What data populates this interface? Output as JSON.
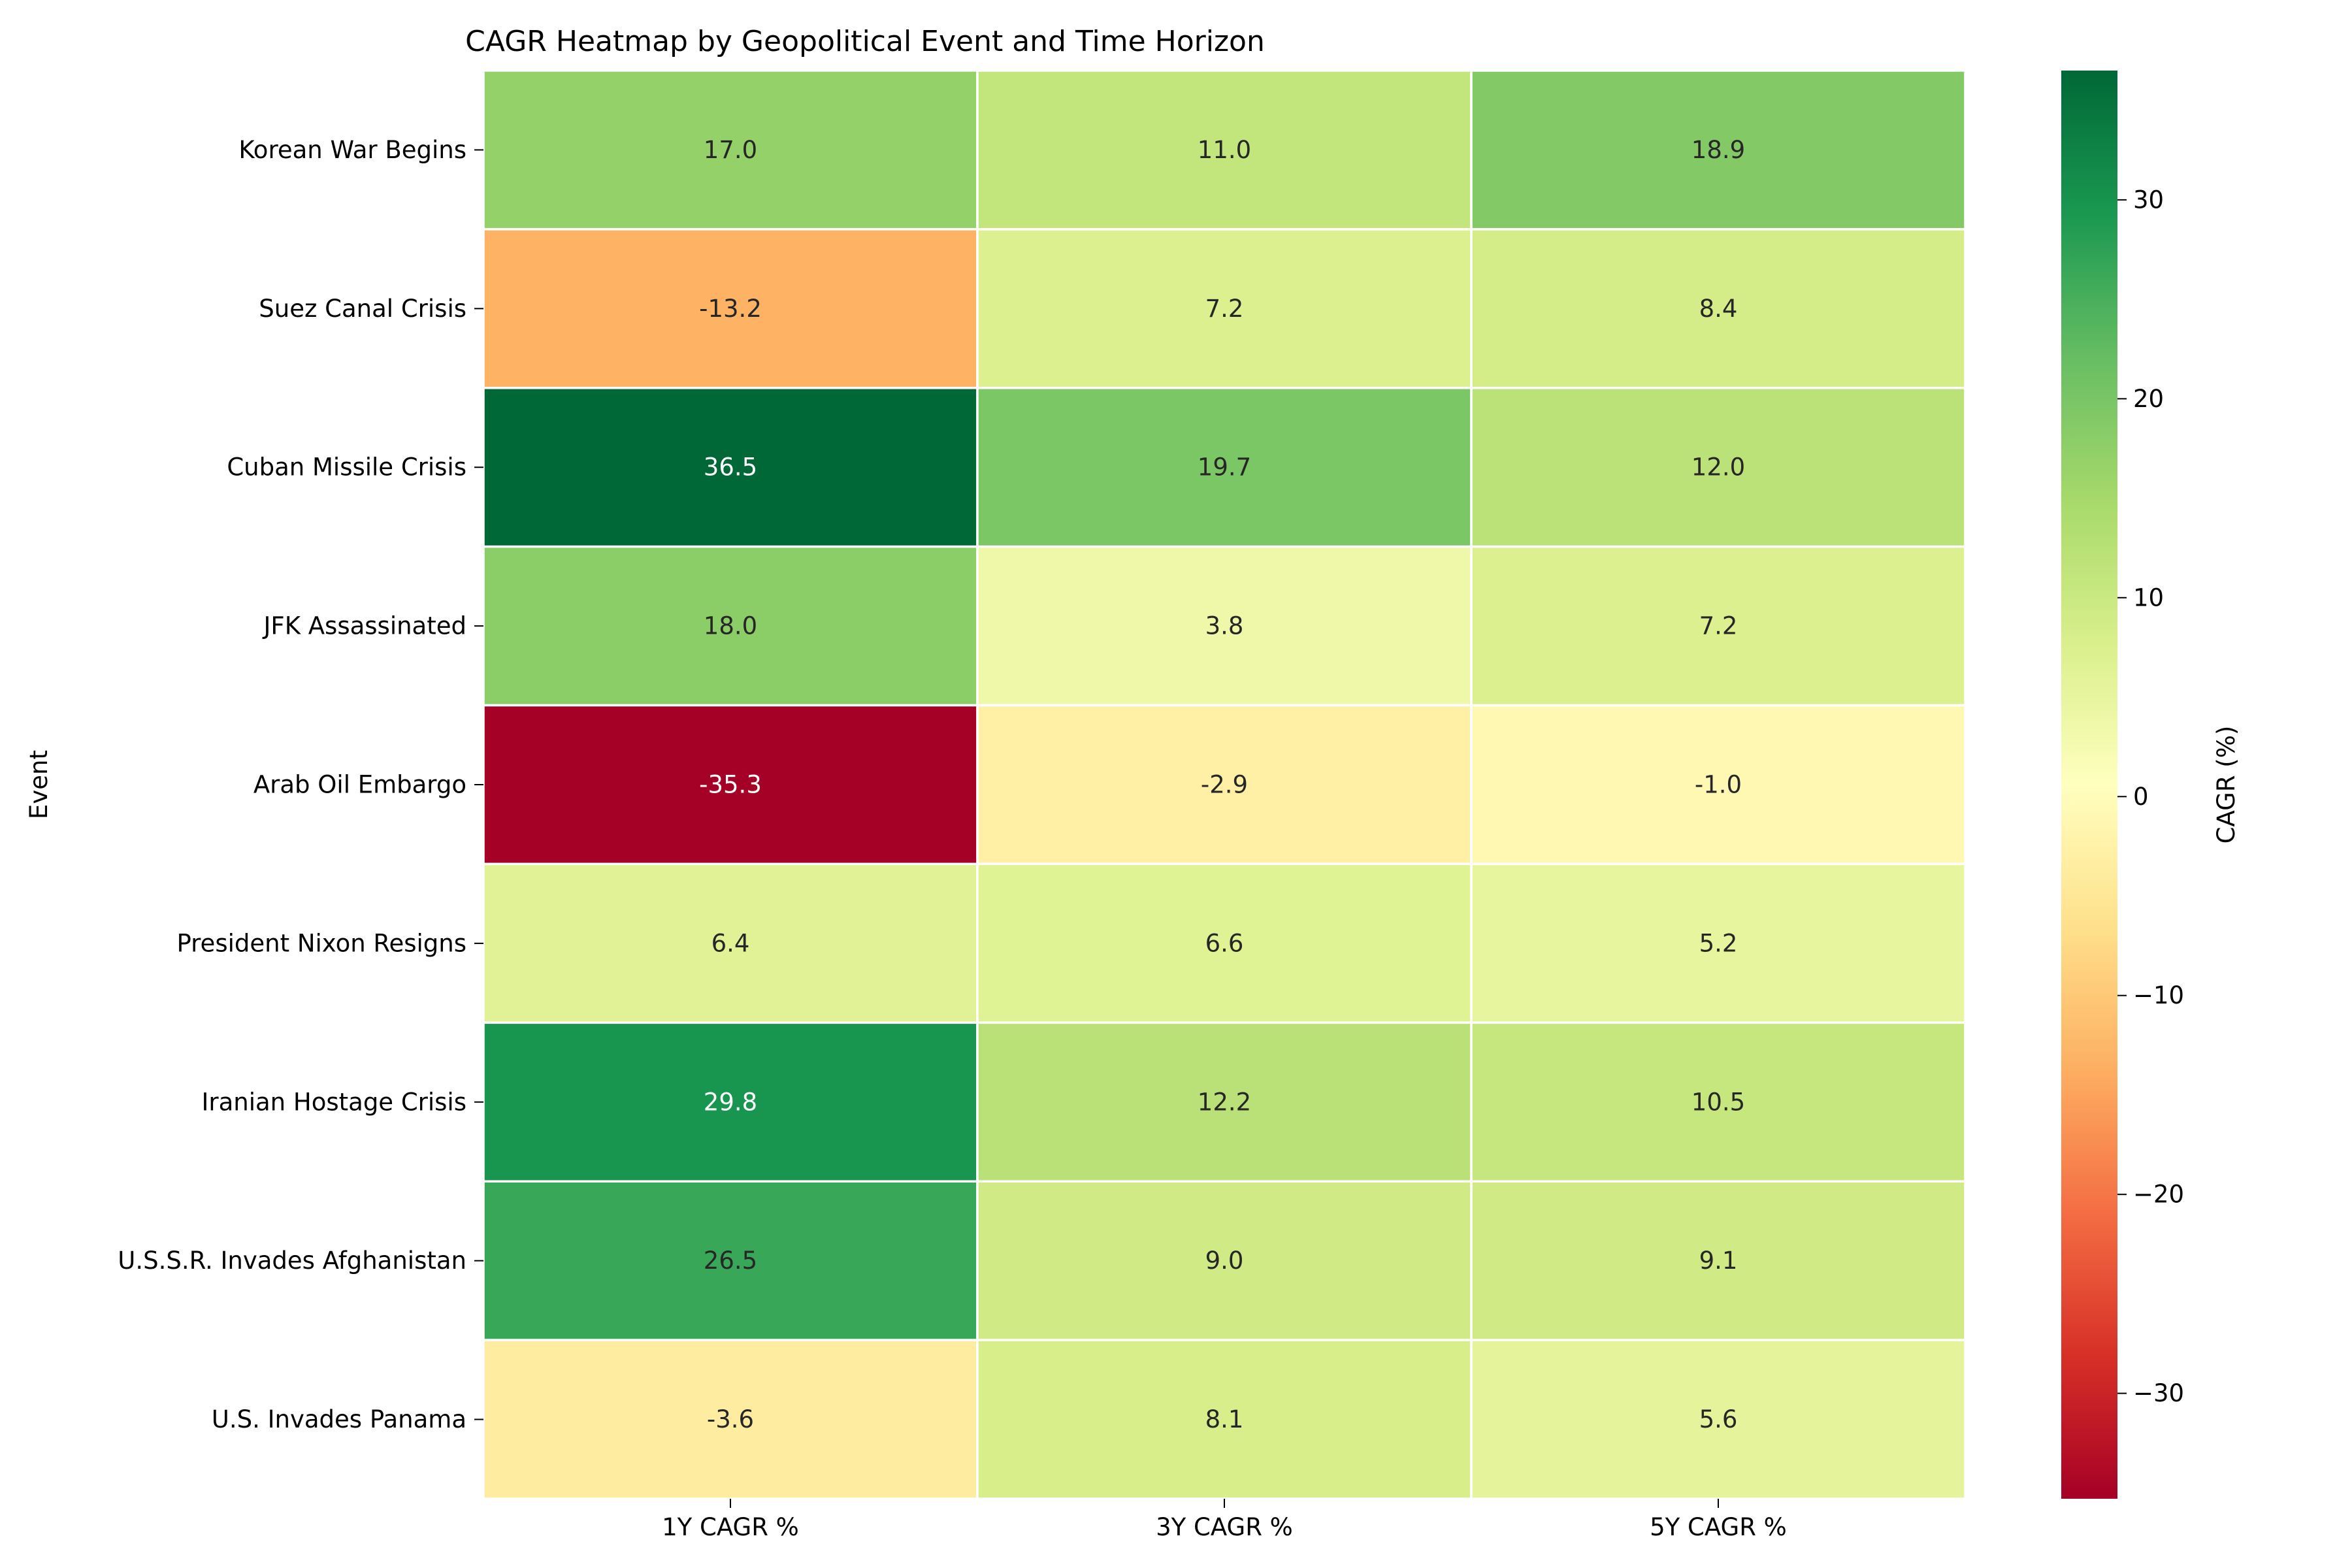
{
  "chart_data": {
    "type": "heatmap",
    "title": "CAGR Heatmap by Geopolitical Event and Time Horizon",
    "xlabel": "",
    "ylabel": "Event",
    "x_categories": [
      "1Y CAGR %",
      "3Y CAGR %",
      "5Y CAGR %"
    ],
    "y_categories": [
      "Korean War Begins",
      "Suez Canal Crisis",
      "Cuban Missile Crisis",
      "JFK Assassinated",
      "Arab Oil Embargo",
      "President Nixon Resigns",
      "Iranian Hostage Crisis",
      "U.S.S.R. Invades Afghanistan",
      "U.S. Invades Panama"
    ],
    "values": [
      [
        17.0,
        11.0,
        18.9
      ],
      [
        -13.2,
        7.2,
        8.4
      ],
      [
        36.5,
        19.7,
        12.0
      ],
      [
        18.0,
        3.8,
        7.2
      ],
      [
        -35.3,
        -2.9,
        -1.0
      ],
      [
        6.4,
        6.6,
        5.2
      ],
      [
        29.8,
        12.2,
        10.5
      ],
      [
        26.5,
        9.0,
        9.1
      ],
      [
        -3.6,
        8.1,
        5.6
      ]
    ],
    "value_format": "0.1f",
    "colormap": "RdYlGn",
    "colorbar": {
      "label": "CAGR (%)",
      "vmin": -35.3,
      "vmax": 36.5,
      "ticks": [
        -30,
        -20,
        -10,
        0,
        10,
        20,
        30
      ],
      "tick_labels": [
        "−30",
        "−20",
        "−10",
        "0",
        "10",
        "20",
        "30"
      ]
    },
    "grid_line_color": "#ffffff",
    "grid": false
  }
}
